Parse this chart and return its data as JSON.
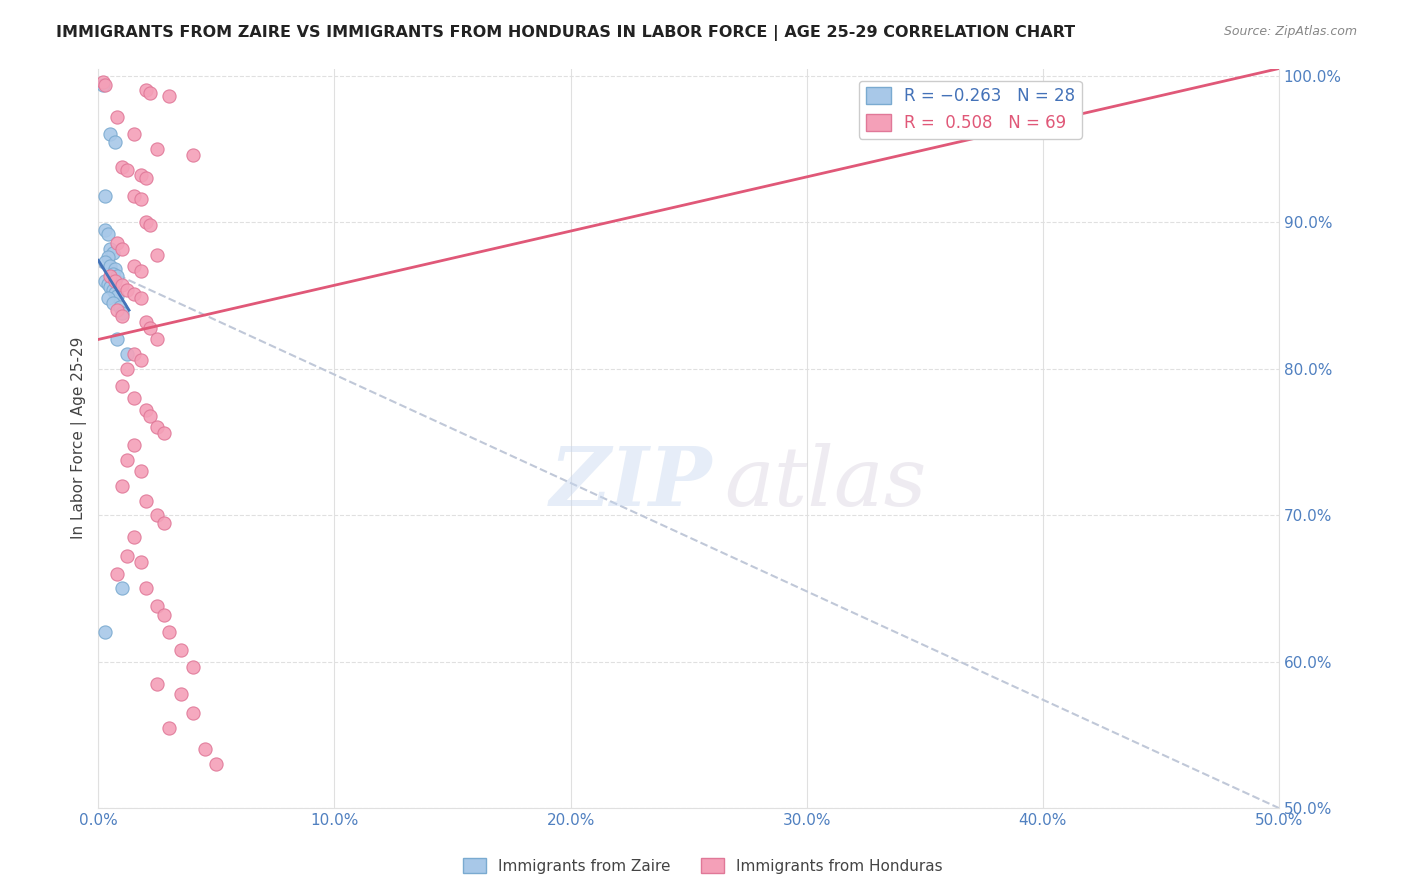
{
  "title": "IMMIGRANTS FROM ZAIRE VS IMMIGRANTS FROM HONDURAS IN LABOR FORCE | AGE 25-29 CORRELATION CHART",
  "source": "Source: ZipAtlas.com",
  "ylabel": "In Labor Force | Age 25-29",
  "xlim": [
    0.0,
    0.5
  ],
  "ylim": [
    0.5,
    1.005
  ],
  "zaire_dots": [
    [
      0.002,
      0.994
    ],
    [
      0.005,
      0.96
    ],
    [
      0.007,
      0.955
    ],
    [
      0.003,
      0.918
    ],
    [
      0.003,
      0.895
    ],
    [
      0.004,
      0.892
    ],
    [
      0.005,
      0.882
    ],
    [
      0.006,
      0.879
    ],
    [
      0.004,
      0.876
    ],
    [
      0.003,
      0.873
    ],
    [
      0.005,
      0.87
    ],
    [
      0.007,
      0.868
    ],
    [
      0.006,
      0.865
    ],
    [
      0.008,
      0.863
    ],
    [
      0.003,
      0.86
    ],
    [
      0.004,
      0.858
    ],
    [
      0.005,
      0.856
    ],
    [
      0.006,
      0.854
    ],
    [
      0.007,
      0.852
    ],
    [
      0.008,
      0.85
    ],
    [
      0.004,
      0.848
    ],
    [
      0.006,
      0.845
    ],
    [
      0.009,
      0.842
    ],
    [
      0.01,
      0.838
    ],
    [
      0.008,
      0.82
    ],
    [
      0.012,
      0.81
    ],
    [
      0.01,
      0.65
    ],
    [
      0.003,
      0.62
    ]
  ],
  "honduras_dots": [
    [
      0.002,
      0.996
    ],
    [
      0.003,
      0.994
    ],
    [
      0.02,
      0.99
    ],
    [
      0.022,
      0.988
    ],
    [
      0.03,
      0.986
    ],
    [
      0.008,
      0.972
    ],
    [
      0.015,
      0.96
    ],
    [
      0.025,
      0.95
    ],
    [
      0.04,
      0.946
    ],
    [
      0.01,
      0.938
    ],
    [
      0.012,
      0.936
    ],
    [
      0.018,
      0.932
    ],
    [
      0.02,
      0.93
    ],
    [
      0.015,
      0.918
    ],
    [
      0.018,
      0.916
    ],
    [
      0.02,
      0.9
    ],
    [
      0.022,
      0.898
    ],
    [
      0.008,
      0.886
    ],
    [
      0.01,
      0.882
    ],
    [
      0.025,
      0.878
    ],
    [
      0.015,
      0.87
    ],
    [
      0.018,
      0.867
    ],
    [
      0.005,
      0.863
    ],
    [
      0.007,
      0.86
    ],
    [
      0.01,
      0.857
    ],
    [
      0.012,
      0.854
    ],
    [
      0.015,
      0.851
    ],
    [
      0.018,
      0.848
    ],
    [
      0.008,
      0.84
    ],
    [
      0.01,
      0.836
    ],
    [
      0.02,
      0.832
    ],
    [
      0.022,
      0.828
    ],
    [
      0.025,
      0.82
    ],
    [
      0.015,
      0.81
    ],
    [
      0.018,
      0.806
    ],
    [
      0.012,
      0.8
    ],
    [
      0.01,
      0.788
    ],
    [
      0.015,
      0.78
    ],
    [
      0.02,
      0.772
    ],
    [
      0.022,
      0.768
    ],
    [
      0.025,
      0.76
    ],
    [
      0.028,
      0.756
    ],
    [
      0.015,
      0.748
    ],
    [
      0.012,
      0.738
    ],
    [
      0.018,
      0.73
    ],
    [
      0.01,
      0.72
    ],
    [
      0.02,
      0.71
    ],
    [
      0.025,
      0.7
    ],
    [
      0.028,
      0.695
    ],
    [
      0.015,
      0.685
    ],
    [
      0.012,
      0.672
    ],
    [
      0.018,
      0.668
    ],
    [
      0.008,
      0.66
    ],
    [
      0.02,
      0.65
    ],
    [
      0.025,
      0.638
    ],
    [
      0.028,
      0.632
    ],
    [
      0.03,
      0.62
    ],
    [
      0.035,
      0.608
    ],
    [
      0.04,
      0.596
    ],
    [
      0.025,
      0.585
    ],
    [
      0.035,
      0.578
    ],
    [
      0.04,
      0.565
    ],
    [
      0.03,
      0.555
    ],
    [
      0.045,
      0.54
    ],
    [
      0.05,
      0.53
    ]
  ],
  "zaire_color": "#a8c8e8",
  "zaire_edge": "#7aaad0",
  "honduras_color": "#f4a0b8",
  "honduras_edge": "#e07898",
  "trend_zaire_color": "#4472b8",
  "trend_honduras_color": "#e05878",
  "trend_dashed_color": "#c0c8d8",
  "grid_color": "#e0e0e0",
  "right_axis_color": "#5080c0",
  "bottom_axis_color": "#5080c0",
  "background_color": "#ffffff",
  "zaire_trend_x": [
    0.0,
    0.013
  ],
  "zaire_trend_y": [
    0.874,
    0.84
  ],
  "honduras_trend_x": [
    0.0,
    0.5
  ],
  "honduras_trend_y": [
    0.82,
    1.005
  ],
  "dashed_trend_x": [
    0.0,
    0.5
  ],
  "dashed_trend_y": [
    0.87,
    0.5
  ]
}
